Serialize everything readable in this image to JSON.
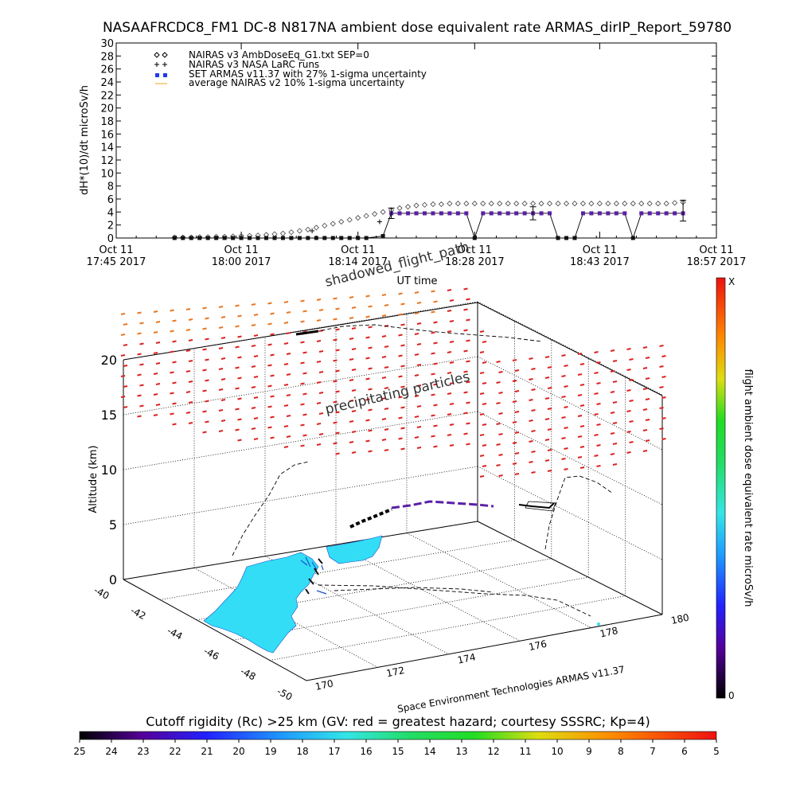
{
  "title": "NASAAFRCDC8_FM1 DC-8   N817NA ambient dose equivalent rate ARMAS_dirIP_Report_59780",
  "chart_data": [
    {
      "type": "scatter",
      "ylabel": "dH*(10)/dt microSv/h",
      "xlabel": "UT time",
      "ylim": [
        0,
        30
      ],
      "yticks": [
        "0",
        "2",
        "4",
        "6",
        "8",
        "10",
        "12",
        "14",
        "16",
        "18",
        "20",
        "22",
        "24",
        "26",
        "28",
        "30"
      ],
      "xticks": [
        {
          "line1": "Oct 11",
          "line2": "17:45 2017",
          "t": 0
        },
        {
          "line1": "Oct 11",
          "line2": "18:00 2017",
          "t": 15
        },
        {
          "line1": "Oct 11",
          "line2": "18:14 2017",
          "t": 29
        },
        {
          "line1": "Oct 11",
          "line2": "18:28 2017",
          "t": 43
        },
        {
          "line1": "Oct 11",
          "line2": "18:43 2017",
          "t": 58
        },
        {
          "line1": "Oct 11",
          "line2": "18:57 2017",
          "t": 72
        }
      ],
      "xlim": [
        0,
        72
      ],
      "legend_position": "top-left",
      "legend": [
        "NAIRAS v3 AmbDoseEq_G1.txt SEP=0",
        "NAIRAS v3 NASA LaRC runs",
        "SET ARMAS v11.37 with 27% 1-sigma uncertainty",
        "average NAIRAS v2 10% 1-sigma uncertainty"
      ],
      "series": [
        {
          "name": "NAIRAS v3 AmbDoseEq_G1.txt SEP=0",
          "marker": "diamond",
          "x": [
            7,
            8,
            9,
            10,
            11,
            12,
            13,
            14,
            15,
            16,
            17,
            18,
            19,
            20,
            21,
            22,
            23,
            24,
            25,
            26,
            27,
            28,
            29,
            30,
            31,
            32,
            33,
            34,
            35,
            36,
            37,
            38,
            39,
            40,
            41,
            42,
            43,
            44,
            45,
            46,
            47,
            48,
            49,
            50,
            51,
            52,
            53,
            54,
            55,
            56,
            57,
            58,
            59,
            60,
            61,
            62,
            63,
            64,
            65,
            66,
            67,
            68
          ],
          "y": [
            0.1,
            0.1,
            0.1,
            0.15,
            0.15,
            0.2,
            0.2,
            0.25,
            0.3,
            0.35,
            0.4,
            0.5,
            0.6,
            0.7,
            0.9,
            1.1,
            1.3,
            1.6,
            1.9,
            2.2,
            2.5,
            2.8,
            3.1,
            3.4,
            3.7,
            4.0,
            4.3,
            4.6,
            4.8,
            5.0,
            5.1,
            5.2,
            5.2,
            5.3,
            5.3,
            5.3,
            5.3,
            5.3,
            5.3,
            5.3,
            5.3,
            5.3,
            5.3,
            5.3,
            5.3,
            5.3,
            5.3,
            5.3,
            5.3,
            5.3,
            5.3,
            5.3,
            5.3,
            5.3,
            5.3,
            5.3,
            5.3,
            5.3,
            5.3,
            5.3,
            5.4,
            5.5
          ]
        },
        {
          "name": "NAIRAS v3 NASA LaRC runs",
          "marker": "plus",
          "x": [
            23.5,
            31.6
          ],
          "y": [
            1.1,
            2.5
          ]
        },
        {
          "name": "SET ARMAS v11.37 with 27% 1-sigma uncertainty",
          "marker": "square",
          "x": [
            7,
            8,
            9,
            10,
            11,
            12,
            13,
            14,
            15,
            16,
            17,
            18,
            19,
            20,
            21,
            22,
            23,
            24,
            25,
            26,
            27,
            28,
            29,
            30,
            32,
            33,
            34,
            35,
            36,
            37,
            38,
            39,
            40,
            41,
            42,
            43,
            44,
            45,
            46,
            47,
            48,
            49,
            50,
            51,
            52,
            53,
            54,
            55,
            56,
            57,
            58,
            59,
            60,
            61,
            62,
            63,
            64,
            65,
            66,
            67,
            68
          ],
          "y": [
            0,
            0,
            0,
            0,
            0,
            0,
            0,
            0,
            0,
            0,
            0,
            0,
            0,
            0,
            0,
            0,
            0,
            0,
            0,
            0,
            0,
            0,
            0,
            0,
            0.3,
            3.8,
            3.8,
            3.8,
            3.8,
            3.8,
            3.8,
            3.8,
            3.8,
            3.8,
            3.8,
            0,
            3.8,
            3.8,
            3.8,
            3.8,
            3.8,
            3.8,
            3.8,
            3.8,
            3.8,
            0,
            0,
            0,
            3.8,
            3.8,
            3.8,
            3.8,
            3.8,
            3.8,
            0,
            3.8,
            3.8,
            3.8,
            3.8,
            3.8,
            3.8
          ]
        },
        {
          "name": "average NAIRAS v2 10% 1-sigma uncertainty",
          "marker": "errorbar",
          "x": [
            33,
            50,
            68
          ],
          "y": [
            3.8,
            3.8,
            4.2
          ],
          "err": [
            0.8,
            1.0,
            1.6
          ]
        }
      ]
    },
    {
      "type": "3d-trajectory",
      "zlabel": "Altitude (km)",
      "zticks": [
        "0",
        "5",
        "10",
        "15",
        "20"
      ],
      "latitude_ticks": [
        "-40",
        "-42",
        "-44",
        "-46",
        "-48",
        "-50"
      ],
      "longitude_ticks": [
        "170",
        "172",
        "174",
        "176",
        "178",
        "180"
      ],
      "annotations": [
        "shadowed_flight_path",
        "precipitating particles"
      ],
      "credit": "Space Environment Technologies ARMAS v11.37"
    }
  ],
  "colorbar_vertical": {
    "label": "flight ambient dose equivalent rate microSv/h",
    "top_label": "X",
    "bottom_label": "0"
  },
  "colorbar_horizontal": {
    "caption": "Cutoff rigidity (Rc) >25 km (GV: red = greatest hazard; courtesy SSSRC; Kp=4)",
    "ticks": [
      "25",
      "24",
      "23",
      "22",
      "21",
      "20",
      "19",
      "18",
      "17",
      "16",
      "15",
      "14",
      "13",
      "12",
      "11",
      "10",
      "9",
      "8",
      "7",
      "6",
      "5"
    ]
  },
  "colors": {
    "nairas_v3": "#888888",
    "armas": "#5a1fa8",
    "errorbar": "#000000",
    "land": "#33ddf5",
    "rigidity_high": "#dd2222",
    "rigidity_mid": "#e87722"
  }
}
